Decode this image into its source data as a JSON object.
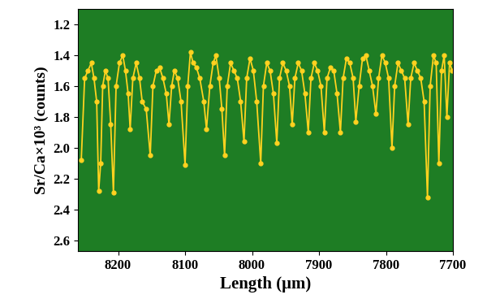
{
  "chart_data": {
    "type": "line",
    "x_label": "Length (μm)",
    "y_label": "Sr/Ca×10³ (counts)",
    "xlim": [
      8260,
      7700
    ],
    "xticks": [
      8200,
      8100,
      8000,
      7900,
      7800,
      7700
    ],
    "ylim": [
      2.67,
      1.1
    ],
    "yticks": [
      1.2,
      1.4,
      1.6,
      1.8,
      2.0,
      2.2,
      2.4,
      2.6
    ],
    "grid": false,
    "color": "#ffd21f",
    "marker": "o",
    "line_style": "solid",
    "x": [
      8255,
      8250,
      8245,
      8240,
      8236,
      8232,
      8229,
      8226,
      8223,
      8219,
      8215,
      8211,
      8207,
      8203,
      8198,
      8193,
      8189,
      8185,
      8182,
      8178,
      8173,
      8168,
      8164,
      8158,
      8152,
      8148,
      8143,
      8138,
      8133,
      8128,
      8124,
      8120,
      8116,
      8111,
      8106,
      8100,
      8096,
      8092,
      8088,
      8083,
      8078,
      8072,
      8068,
      8063,
      8058,
      8054,
      8049,
      8045,
      8041,
      8037,
      8032,
      8027,
      8022,
      8017,
      8012,
      8008,
      8003,
      7998,
      7993,
      7987,
      7983,
      7978,
      7973,
      7968,
      7963,
      7959,
      7954,
      7949,
      7944,
      7940,
      7936,
      7931,
      7926,
      7921,
      7916,
      7912,
      7907,
      7902,
      7897,
      7892,
      7888,
      7883,
      7878,
      7873,
      7868,
      7864,
      7859,
      7854,
      7849,
      7845,
      7840,
      7835,
      7830,
      7825,
      7820,
      7815,
      7811,
      7806,
      7801,
      7796,
      7791,
      7787,
      7782,
      7777,
      7772,
      7767,
      7763,
      7758,
      7753,
      7748,
      7743,
      7738,
      7734,
      7729,
      7725,
      7721,
      7717,
      7713,
      7709,
      7705,
      7701
    ],
    "values": [
      2.08,
      1.55,
      1.5,
      1.45,
      1.55,
      1.7,
      2.28,
      2.1,
      1.6,
      1.5,
      1.55,
      1.85,
      2.29,
      1.6,
      1.45,
      1.4,
      1.5,
      1.65,
      1.88,
      1.55,
      1.45,
      1.55,
      1.7,
      1.75,
      2.05,
      1.6,
      1.5,
      1.48,
      1.55,
      1.65,
      1.85,
      1.6,
      1.5,
      1.55,
      1.7,
      2.11,
      1.6,
      1.38,
      1.45,
      1.48,
      1.55,
      1.7,
      1.88,
      1.6,
      1.45,
      1.4,
      1.55,
      1.75,
      2.05,
      1.6,
      1.45,
      1.5,
      1.55,
      1.7,
      1.96,
      1.55,
      1.42,
      1.5,
      1.7,
      2.1,
      1.6,
      1.45,
      1.5,
      1.65,
      1.97,
      1.55,
      1.45,
      1.5,
      1.6,
      1.85,
      1.55,
      1.45,
      1.5,
      1.65,
      1.9,
      1.55,
      1.45,
      1.5,
      1.6,
      1.9,
      1.55,
      1.48,
      1.5,
      1.65,
      1.9,
      1.55,
      1.42,
      1.45,
      1.55,
      1.83,
      1.6,
      1.42,
      1.4,
      1.5,
      1.6,
      1.78,
      1.55,
      1.4,
      1.45,
      1.55,
      2.0,
      1.6,
      1.45,
      1.5,
      1.55,
      1.85,
      1.55,
      1.45,
      1.5,
      1.55,
      1.7,
      2.32,
      1.6,
      1.4,
      1.45,
      2.1,
      1.5,
      1.4,
      1.8,
      1.45,
      1.5
    ]
  }
}
